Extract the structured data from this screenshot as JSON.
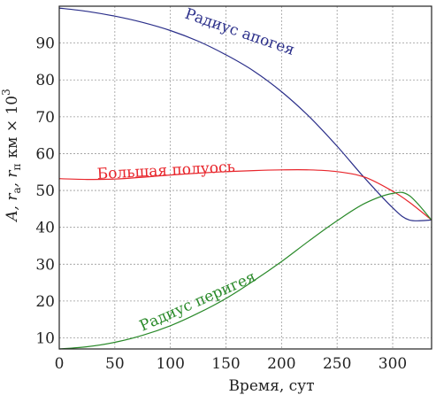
{
  "chart_data": {
    "type": "line",
    "xlabel": "Время, сут",
    "ylabel": "A, r",
    "ylabel_sub_a": "а",
    "ylabel_mid": ", r",
    "ylabel_sub_p": "п",
    "ylabel_units": "км × 10",
    "ylabel_sup": "3",
    "xlim": [
      0,
      335
    ],
    "ylim": [
      7,
      100
    ],
    "x_ticks": [
      0,
      50,
      100,
      150,
      200,
      250,
      300
    ],
    "y_ticks": [
      10,
      20,
      30,
      40,
      50,
      60,
      70,
      80,
      90
    ],
    "grid": true,
    "series": [
      {
        "name": "Радиус апогея",
        "color": "#2b2f8a",
        "x": [
          0,
          25,
          50,
          75,
          100,
          125,
          150,
          175,
          200,
          225,
          250,
          275,
          300,
          315,
          335
        ],
        "y": [
          99.5,
          98.6,
          97.3,
          95.6,
          93.4,
          90.5,
          86.8,
          82.4,
          76.8,
          70.0,
          62.0,
          53.3,
          45.3,
          42.0,
          42.0
        ]
      },
      {
        "name": "Большая полуось",
        "color": "#e8262c",
        "x": [
          0,
          25,
          50,
          75,
          100,
          125,
          150,
          175,
          200,
          225,
          250,
          275,
          300,
          315,
          335
        ],
        "y": [
          53.2,
          53.0,
          53.1,
          53.6,
          54.2,
          54.7,
          55.1,
          55.4,
          55.6,
          55.6,
          55.1,
          53.6,
          49.8,
          46.8,
          42.0
        ]
      },
      {
        "name": "Радиус перигея",
        "color": "#2a8a2a",
        "x": [
          0,
          25,
          50,
          75,
          100,
          125,
          150,
          175,
          200,
          225,
          250,
          275,
          300,
          315,
          335
        ],
        "y": [
          7.0,
          7.6,
          8.8,
          10.7,
          13.3,
          16.7,
          20.7,
          25.5,
          30.7,
          36.4,
          41.8,
          46.5,
          49.2,
          48.6,
          42.0
        ]
      }
    ],
    "annotations": [
      "Радиус апогея",
      "Большая полуось",
      "Радиус перигея"
    ]
  }
}
